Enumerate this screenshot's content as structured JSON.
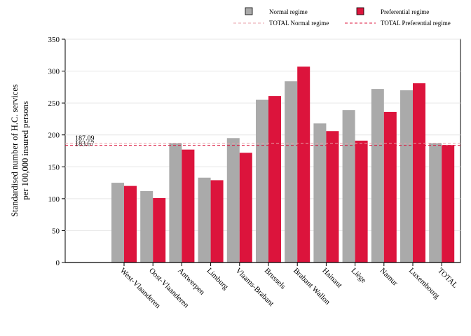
{
  "chart_data": {
    "type": "bar",
    "title": "",
    "xlabel": "",
    "ylabel": [
      "Standardised number of H.C. services",
      "per 100,000 insured persons"
    ],
    "ylim": [
      0,
      350
    ],
    "yticks": [
      0,
      50,
      100,
      150,
      200,
      250,
      300,
      350
    ],
    "grid": true,
    "legend_position": "top",
    "categories": [
      "West-Vlaanderen",
      "Oost-Vlaanderen",
      "Antwerpen",
      "Limburg",
      "Vlaams-Brabant",
      "Brussels",
      "Brabant Wallon",
      "Hainaut",
      "Liège",
      "Namur",
      "Luxembourg",
      "TOTAL"
    ],
    "series": [
      {
        "name": "Normal regime",
        "color": "#aaaaaa",
        "values": [
          125,
          112,
          187,
          133,
          195,
          255,
          284,
          218,
          239,
          272,
          270,
          187
        ]
      },
      {
        "name": "Preferential regime",
        "color": "#dc143c",
        "values": [
          120,
          101,
          177,
          129,
          172,
          261,
          307,
          206,
          191,
          236,
          281,
          184
        ]
      }
    ],
    "reference_lines": [
      {
        "name": "TOTAL Normal regime",
        "value": 187.09,
        "label": "187.09",
        "color": "#e8a0a8",
        "style": "dashed"
      },
      {
        "name": "TOTAL Preferential regime",
        "value": 183.67,
        "label": "183.67",
        "color": "#dc143c",
        "style": "dashed"
      }
    ]
  }
}
